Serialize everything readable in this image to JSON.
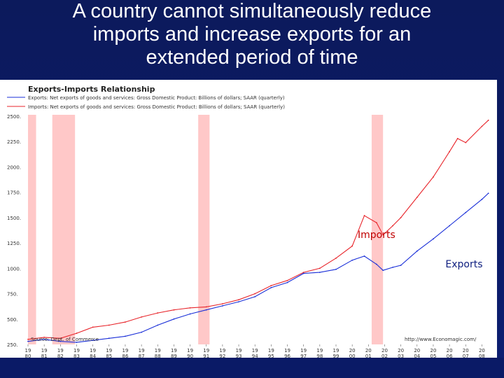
{
  "slide": {
    "title_lines": [
      "A country cannot simultaneously reduce",
      "imports and increase exports for an",
      "extended period of time"
    ]
  },
  "chart_data": {
    "type": "line",
    "title": "Exports-Imports Relationship",
    "legend": [
      "Exports: Net exports of goods and services: Gross Domestic Product: Billions of dollars; SAAR (quarterly)",
      "Imports: Net exports of goods and services: Gross Domestic Product: Billions of dollars; SAAR (quarterly)"
    ],
    "legend_placement": "top-left",
    "ylim": [
      250,
      2500
    ],
    "yticks": [
      "2500.",
      "2250.",
      "2000.",
      "1750.",
      "1500.",
      "1250.",
      "1000.",
      "750.",
      "500.",
      "250."
    ],
    "ytick_values": [
      2500,
      2250,
      2000,
      1750,
      1500,
      1250,
      1000,
      750,
      500,
      250
    ],
    "xlim": [
      1980,
      2008.5
    ],
    "xticks": [
      [
        "19",
        "80"
      ],
      [
        "19",
        "81"
      ],
      [
        "19",
        "82"
      ],
      [
        "19",
        "83"
      ],
      [
        "19",
        "84"
      ],
      [
        "19",
        "85"
      ],
      [
        "19",
        "86"
      ],
      [
        "19",
        "87"
      ],
      [
        "19",
        "88"
      ],
      [
        "19",
        "89"
      ],
      [
        "19",
        "90"
      ],
      [
        "19",
        "91"
      ],
      [
        "19",
        "92"
      ],
      [
        "19",
        "93"
      ],
      [
        "19",
        "94"
      ],
      [
        "19",
        "95"
      ],
      [
        "19",
        "96"
      ],
      [
        "19",
        "97"
      ],
      [
        "19",
        "98"
      ],
      [
        "19",
        "99"
      ],
      [
        "20",
        "00"
      ],
      [
        "20",
        "01"
      ],
      [
        "20",
        "02"
      ],
      [
        "20",
        "03"
      ],
      [
        "20",
        "04"
      ],
      [
        "20",
        "05"
      ],
      [
        "20",
        "06"
      ],
      [
        "20",
        "07"
      ],
      [
        "20",
        "08"
      ]
    ],
    "xtick_values": [
      1980,
      1981,
      1982,
      1983,
      1984,
      1985,
      1986,
      1987,
      1988,
      1989,
      1990,
      1991,
      1992,
      1993,
      1994,
      1995,
      1996,
      1997,
      1998,
      1999,
      2000,
      2001,
      2002,
      2003,
      2004,
      2005,
      2006,
      2007,
      2008
    ],
    "recessions": [
      [
        1980.0,
        1980.5
      ],
      [
        1981.5,
        1982.9
      ],
      [
        1990.5,
        1991.2
      ],
      [
        2001.2,
        2001.9
      ]
    ],
    "grid": false,
    "series": [
      {
        "name": "Imports",
        "color": "#e8252b",
        "x": [
          1980,
          1981,
          1982,
          1983,
          1984,
          1985,
          1986,
          1987,
          1988,
          1989,
          1990,
          1991,
          1992,
          1993,
          1994,
          1995,
          1996,
          1997,
          1998,
          1999,
          2000,
          2000.75,
          2001.5,
          2001.9,
          2002.5,
          2003,
          2004,
          2005,
          2006,
          2006.5,
          2007,
          2008,
          2008.4
        ],
        "y": [
          300,
          320,
          310,
          360,
          420,
          440,
          470,
          520,
          560,
          590,
          610,
          620,
          650,
          690,
          750,
          830,
          880,
          960,
          1000,
          1100,
          1220,
          1520,
          1450,
          1330,
          1420,
          1500,
          1700,
          1900,
          2150,
          2280,
          2240,
          2400,
          2460
        ]
      },
      {
        "name": "Exports",
        "color": "#1a2fd8",
        "x": [
          1980,
          1981,
          1982,
          1983,
          1984,
          1985,
          1986,
          1987,
          1988,
          1989,
          1990,
          1991,
          1992,
          1993,
          1994,
          1995,
          1996,
          1997,
          1998,
          1999,
          2000,
          2000.75,
          2001.5,
          2001.9,
          2002.5,
          2003,
          2004,
          2005,
          2006,
          2007,
          2008,
          2008.4
        ],
        "y": [
          280,
          300,
          280,
          270,
          290,
          310,
          330,
          370,
          440,
          500,
          550,
          590,
          630,
          670,
          720,
          810,
          860,
          950,
          960,
          990,
          1080,
          1120,
          1040,
          980,
          1010,
          1030,
          1170,
          1290,
          1420,
          1550,
          1680,
          1740
        ]
      }
    ],
    "annotations": [
      {
        "text": "Imports",
        "x": 2001.5,
        "y": 1300,
        "color": "#c00000"
      },
      {
        "text": "Exports",
        "x": 2006.9,
        "y": 1010,
        "color": "#102080"
      }
    ],
    "source_left": "Source: Dept. of Commerce",
    "source_right": "http://www.Economagic.com/"
  }
}
